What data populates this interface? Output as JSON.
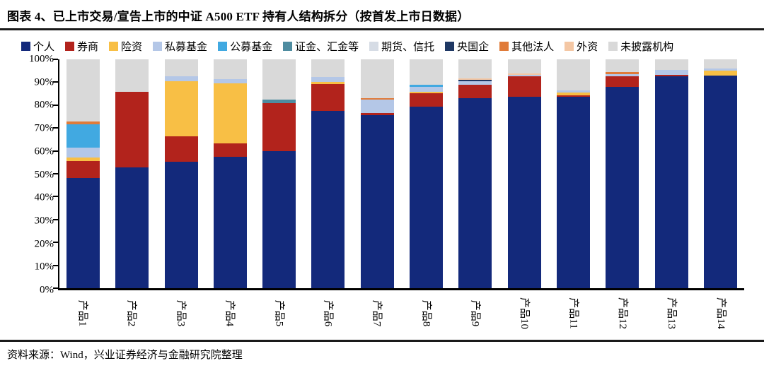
{
  "header": {
    "title": "图表 4、已上市交易/宣告上市的中证 A500 ETF 持有人结构拆分（按首发上市日数据）"
  },
  "footer": {
    "source": "资料来源：Wind，兴业证券经济与金融研究院整理"
  },
  "colors": {
    "axis": "#000000",
    "rule": "#1a1a1a"
  },
  "chart_data": {
    "type": "bar",
    "stacked": true,
    "normalized_100pct": true,
    "title": "已上市交易/宣告上市的中证A500 ETF持有人结构拆分（按首发上市日数据）",
    "xlabel": "",
    "ylabel": "",
    "ylim": [
      0,
      100
    ],
    "grid": false,
    "legend_position": "top",
    "y_ticks": [
      "0%",
      "10%",
      "20%",
      "30%",
      "40%",
      "50%",
      "60%",
      "70%",
      "80%",
      "90%",
      "100%"
    ],
    "categories": [
      "产品1",
      "产品2",
      "产品3",
      "产品4",
      "产品5",
      "产品6",
      "产品7",
      "产品8",
      "产品9",
      "产品10",
      "产品11",
      "产品12",
      "产品13",
      "产品14"
    ],
    "series": [
      {
        "name": "个人",
        "color": "#13297B",
        "values": [
          48.0,
          52.8,
          55.3,
          57.3,
          60.0,
          77.5,
          75.5,
          79.3,
          83.0,
          83.5,
          83.5,
          88.0,
          92.6,
          93.0
        ]
      },
      {
        "name": "券商",
        "color": "#B2231C",
        "values": [
          7.5,
          33.0,
          11.2,
          6.1,
          21.0,
          11.7,
          1.0,
          5.8,
          6.0,
          9.0,
          0.8,
          4.5,
          0.7,
          0.0
        ]
      },
      {
        "name": "险资",
        "color": "#F8BF45",
        "values": [
          1.5,
          0.0,
          24.0,
          26.0,
          0.0,
          0.8,
          0.0,
          0.8,
          0.0,
          0.0,
          1.1,
          0.0,
          0.0,
          2.1
        ]
      },
      {
        "name": "私募基金",
        "color": "#B4C7E7",
        "values": [
          4.5,
          0.0,
          2.0,
          2.1,
          0.0,
          2.4,
          5.9,
          2.0,
          1.5,
          0.7,
          1.1,
          1.0,
          2.0,
          0.9
        ]
      },
      {
        "name": "公募基金",
        "color": "#41A9E1",
        "values": [
          10.0,
          0.0,
          0.0,
          0.0,
          0.0,
          0.0,
          0.0,
          1.1,
          0.0,
          0.0,
          0.0,
          0.0,
          0.0,
          0.0
        ]
      },
      {
        "name": "证金、汇金等",
        "color": "#4E8CA0",
        "values": [
          0.0,
          0.0,
          0.0,
          0.0,
          1.3,
          0.0,
          0.0,
          0.0,
          0.0,
          0.0,
          0.0,
          0.0,
          0.0,
          0.0
        ]
      },
      {
        "name": "期货、信托",
        "color": "#D6DCE5",
        "values": [
          0.0,
          0.0,
          0.0,
          0.0,
          0.0,
          0.0,
          0.0,
          0.0,
          0.0,
          0.0,
          0.0,
          0.0,
          0.0,
          0.0
        ]
      },
      {
        "name": "央国企",
        "color": "#1F3864",
        "values": [
          0.0,
          0.0,
          0.0,
          0.0,
          0.0,
          0.0,
          0.0,
          0.0,
          0.6,
          0.0,
          0.0,
          0.0,
          0.0,
          0.0
        ]
      },
      {
        "name": "其他法人",
        "color": "#E07B39",
        "values": [
          1.3,
          0.0,
          0.0,
          0.0,
          0.0,
          0.0,
          0.7,
          0.0,
          0.0,
          0.0,
          0.0,
          1.1,
          0.0,
          0.0
        ]
      },
      {
        "name": "外资",
        "color": "#F4C7A4",
        "values": [
          0.0,
          0.0,
          0.0,
          0.0,
          0.0,
          0.0,
          0.0,
          0.0,
          0.6,
          0.6,
          0.0,
          0.0,
          0.0,
          0.0
        ]
      },
      {
        "name": "未披露机构",
        "color": "#D9D9D9",
        "values": [
          27.2,
          14.2,
          7.5,
          8.5,
          17.7,
          7.6,
          16.9,
          11.0,
          8.3,
          6.2,
          13.5,
          5.4,
          4.7,
          4.0
        ]
      }
    ]
  }
}
